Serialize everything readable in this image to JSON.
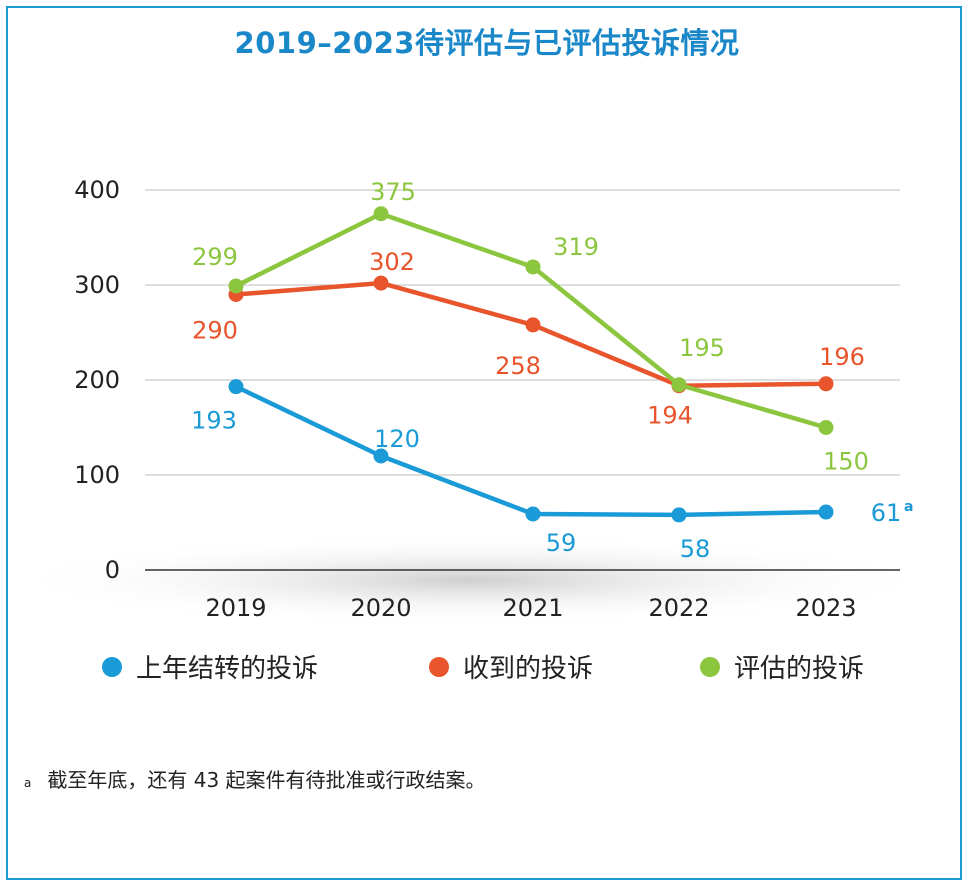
{
  "chart_data": {
    "type": "line",
    "title": "2019–2023待评估与已评估投诉情况",
    "categories": [
      "2019",
      "2020",
      "2021",
      "2022",
      "2023"
    ],
    "ylim": [
      0,
      400
    ],
    "yticks": [
      "0",
      "100",
      "200",
      "300",
      "400"
    ],
    "grid": true,
    "legend_position": "bottom",
    "series": [
      {
        "name": "上年结转的投诉",
        "color": "#1a9ad6",
        "values": [
          193,
          120,
          59,
          58,
          61
        ],
        "labels": [
          "193",
          "120",
          "59",
          "58",
          "61"
        ]
      },
      {
        "name": "收到的投诉",
        "color": "#e8542c",
        "values": [
          290,
          302,
          258,
          194,
          196
        ],
        "labels": [
          "290",
          "302",
          "258",
          "194",
          "196"
        ]
      },
      {
        "name": "评估的投诉",
        "color": "#8cc63f",
        "values": [
          299,
          375,
          319,
          195,
          150
        ],
        "labels": [
          "299",
          "375",
          "319",
          "195",
          "150"
        ]
      }
    ],
    "annotation_mark": "a",
    "footnote": {
      "mark": "a",
      "text": "截至年底，还有 43 起案件有待批准或行政结案。"
    }
  }
}
